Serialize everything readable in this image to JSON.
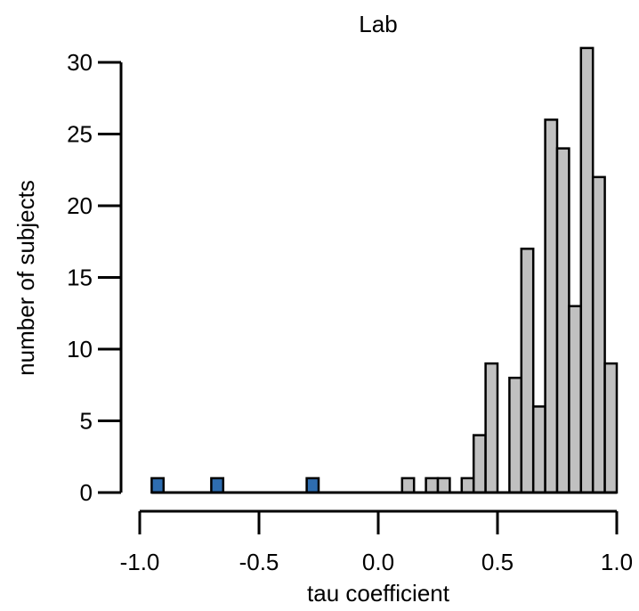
{
  "chart_data": {
    "type": "bar",
    "title": "Lab",
    "xlabel": "tau coefficient",
    "ylabel": "number of subjects",
    "xlim": [
      -1.0,
      1.0
    ],
    "ylim": [
      0,
      31
    ],
    "bin_width": 0.05,
    "x_ticks": [
      "-1.0",
      "-0.5",
      "0.0",
      "0.5",
      "1.0"
    ],
    "y_ticks": [
      "0",
      "5",
      "10",
      "15",
      "20",
      "25",
      "30"
    ],
    "series": [
      {
        "color": "#c0c0c0",
        "bins": [
          {
            "x0": 0.1,
            "value": 1
          },
          {
            "x0": 0.2,
            "value": 1
          },
          {
            "x0": 0.25,
            "value": 1
          },
          {
            "x0": 0.35,
            "value": 1
          },
          {
            "x0": 0.4,
            "value": 4
          },
          {
            "x0": 0.45,
            "value": 9
          },
          {
            "x0": 0.55,
            "value": 8
          },
          {
            "x0": 0.6,
            "value": 17
          },
          {
            "x0": 0.65,
            "value": 6
          },
          {
            "x0": 0.7,
            "value": 26
          },
          {
            "x0": 0.75,
            "value": 24
          },
          {
            "x0": 0.8,
            "value": 13
          },
          {
            "x0": 0.85,
            "value": 31
          },
          {
            "x0": 0.9,
            "value": 22
          },
          {
            "x0": 0.95,
            "value": 9
          }
        ]
      },
      {
        "color": "#2e6db0",
        "bins": [
          {
            "x0": -0.95,
            "value": 1
          },
          {
            "x0": -0.7,
            "value": 1
          },
          {
            "x0": -0.3,
            "value": 1
          }
        ]
      }
    ],
    "zero_baseline": {
      "from": -0.95,
      "to": 1.0
    },
    "grid": false,
    "legend": "none"
  }
}
